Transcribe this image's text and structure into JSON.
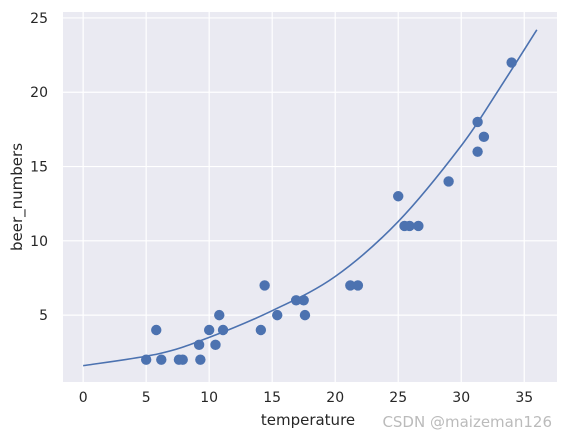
{
  "chart_data": {
    "type": "scatter",
    "title": "",
    "xlabel": "temperature",
    "ylabel": "beer_numbers",
    "xlim": [
      -1.6,
      37.6
    ],
    "ylim": [
      0.5,
      25.4
    ],
    "xticks": [
      "0",
      "5",
      "10",
      "15",
      "20",
      "25",
      "30",
      "35"
    ],
    "yticks": [
      "5",
      "10",
      "15",
      "20",
      "25"
    ],
    "grid": true,
    "background": "#eaeaf2",
    "grid_color": "#ffffff",
    "series": [
      {
        "kind": "scatter",
        "color": "#4c72b0",
        "points": [
          {
            "x": 5.0,
            "y": 2
          },
          {
            "x": 5.8,
            "y": 4
          },
          {
            "x": 6.2,
            "y": 2
          },
          {
            "x": 7.6,
            "y": 2
          },
          {
            "x": 7.9,
            "y": 2
          },
          {
            "x": 9.2,
            "y": 3
          },
          {
            "x": 9.3,
            "y": 2
          },
          {
            "x": 10.0,
            "y": 4
          },
          {
            "x": 10.5,
            "y": 3
          },
          {
            "x": 10.8,
            "y": 5
          },
          {
            "x": 11.1,
            "y": 4
          },
          {
            "x": 14.1,
            "y": 4
          },
          {
            "x": 14.4,
            "y": 7
          },
          {
            "x": 15.4,
            "y": 5
          },
          {
            "x": 16.9,
            "y": 6
          },
          {
            "x": 17.5,
            "y": 6
          },
          {
            "x": 17.6,
            "y": 5
          },
          {
            "x": 21.2,
            "y": 7
          },
          {
            "x": 21.8,
            "y": 7
          },
          {
            "x": 25.0,
            "y": 13
          },
          {
            "x": 25.5,
            "y": 11
          },
          {
            "x": 25.9,
            "y": 11
          },
          {
            "x": 26.6,
            "y": 11
          },
          {
            "x": 29.0,
            "y": 14
          },
          {
            "x": 31.3,
            "y": 16
          },
          {
            "x": 31.3,
            "y": 18
          },
          {
            "x": 31.8,
            "y": 17
          },
          {
            "x": 34.0,
            "y": 22
          }
        ]
      },
      {
        "kind": "line",
        "color": "#4c72b0",
        "points": [
          {
            "x": 0,
            "y": 1.6
          },
          {
            "x": 6,
            "y": 2.4
          },
          {
            "x": 10,
            "y": 3.5
          },
          {
            "x": 15,
            "y": 5.3
          },
          {
            "x": 20,
            "y": 7.6
          },
          {
            "x": 25,
            "y": 11.3
          },
          {
            "x": 30,
            "y": 16.4
          },
          {
            "x": 33,
            "y": 20.2
          },
          {
            "x": 36,
            "y": 24.2
          }
        ]
      }
    ]
  },
  "watermark": "CSDN @maizeman126"
}
